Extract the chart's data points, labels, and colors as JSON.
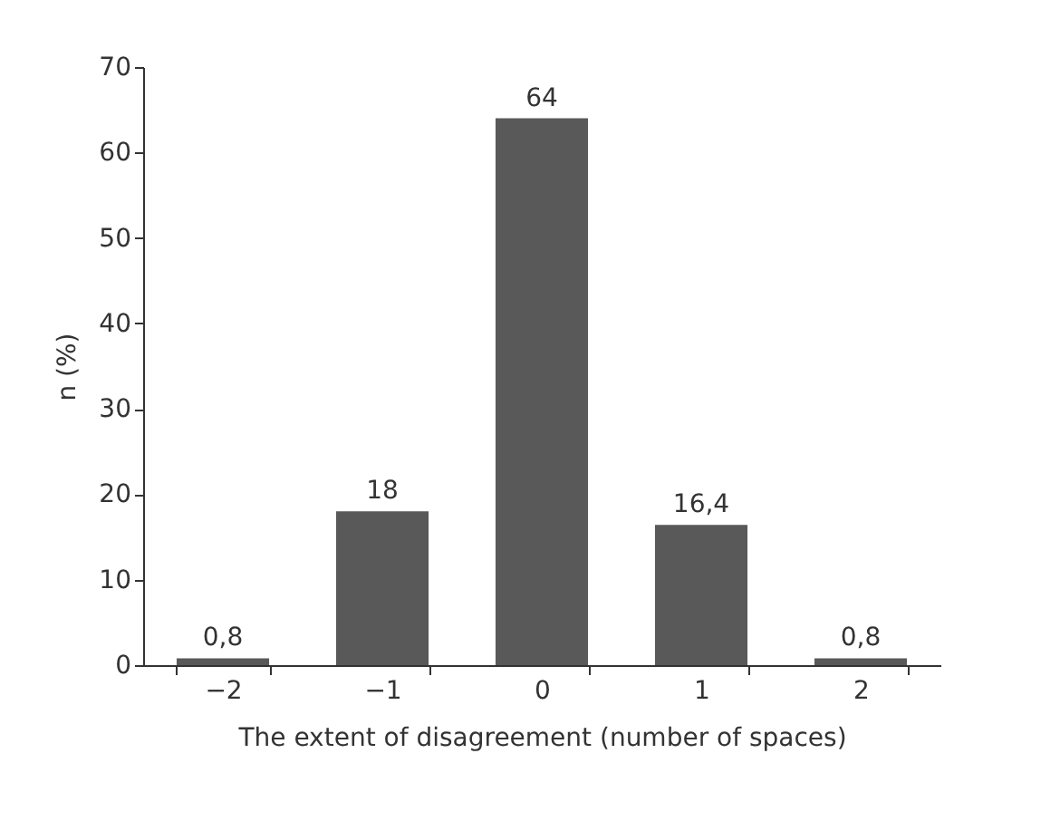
{
  "chart_data": {
    "type": "bar",
    "xlabel": "The extent of disagreement (number of spaces)",
    "ylabel": "n (%)",
    "categories": [
      "−2",
      "−1",
      "0",
      "1",
      "2"
    ],
    "values": [
      0.8,
      18,
      64,
      16.4,
      0.8
    ],
    "value_labels": [
      "0,8",
      "18",
      "64",
      "16,4",
      "0,8"
    ],
    "color": "#595959",
    "ylim": [
      0,
      70
    ],
    "yticks": [
      0,
      10,
      20,
      30,
      40,
      50,
      60,
      70
    ],
    "grid": false
  }
}
